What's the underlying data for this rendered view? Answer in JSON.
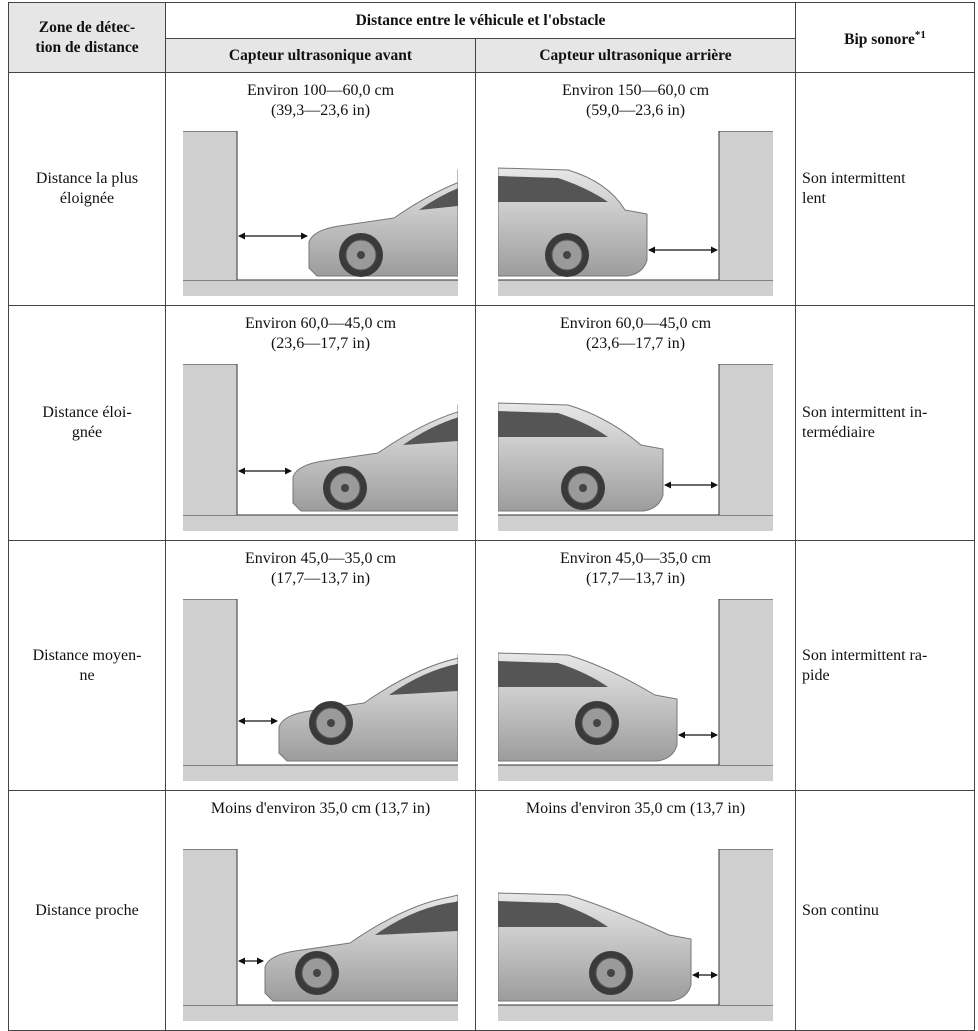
{
  "table": {
    "header": {
      "zone": "Zone de détec-\ntion de distance",
      "distance": "Distance entre le véhicule et l'obstacle",
      "front": "Capteur ultrasonique avant",
      "rear": "Capteur ultrasonique arrière",
      "sound": "Bip sonore",
      "sound_note": "*1"
    },
    "rows": [
      {
        "zone": "Distance la plus\néloignée",
        "front": "Environ 100—60,0 cm\n(39,3—23,6 in)",
        "rear": "Environ 150—60,0 cm\n(59,0—23,6 in)",
        "sound": "Son intermittent\nlent"
      },
      {
        "zone": "Distance éloi-\ngnée",
        "front": "Environ 60,0—45,0 cm\n(23,6—17,7 in)",
        "rear": "Environ 60,0—45,0 cm\n(23,6—17,7 in)",
        "sound": "Son intermittent in-\ntermédiaire"
      },
      {
        "zone": "Distance moyen-\nne",
        "front": "Environ 45,0—35,0 cm\n(17,7—13,7 in)",
        "rear": "Environ 45,0—35,0 cm\n(17,7—13,7 in)",
        "sound": "Son intermittent ra-\npide"
      },
      {
        "zone": "Distance proche",
        "front": "Moins d'environ 35,0 cm (13,7 in)",
        "rear": "Moins d'environ 35,0 cm (13,7 in)",
        "sound": "Son continu"
      }
    ]
  }
}
